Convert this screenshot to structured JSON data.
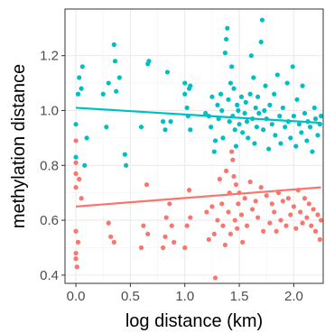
{
  "chart_data": {
    "type": "scatter",
    "title": "",
    "xlabel": "log distance (km)",
    "ylabel": "methylation distance",
    "xlim": [
      -0.1,
      2.27
    ],
    "ylim": [
      0.37,
      1.37
    ],
    "x_ticks": [
      0.0,
      0.5,
      1.0,
      1.5,
      2.0
    ],
    "x_tick_labels": [
      "0.0",
      "0.5",
      "1.0",
      "1.5",
      "2.0"
    ],
    "y_ticks": [
      0.4,
      0.6,
      0.8,
      1.0,
      1.2
    ],
    "y_tick_labels": [
      "0.4",
      "0.6",
      "0.8",
      "1.0",
      "1.2"
    ],
    "grid": true,
    "legend": "none",
    "series": [
      {
        "color": "#00BFC4",
        "trend": {
          "x": [
            0.0,
            2.25
          ],
          "y": [
            1.01,
            0.955
          ]
        },
        "points": [
          [
            0.0,
            0.83
          ],
          [
            0.0,
            0.95
          ],
          [
            0.02,
            1.06
          ],
          [
            0.03,
            1.12
          ],
          [
            0.05,
            1.08
          ],
          [
            0.06,
            1.16
          ],
          [
            0.08,
            0.8
          ],
          [
            0.1,
            0.9
          ],
          [
            0.25,
            1.06
          ],
          [
            0.28,
            0.94
          ],
          [
            0.3,
            1.1
          ],
          [
            0.35,
            1.24
          ],
          [
            0.36,
            1.18
          ],
          [
            0.37,
            1.07
          ],
          [
            0.4,
            1.12
          ],
          [
            0.45,
            0.84
          ],
          [
            0.46,
            0.8
          ],
          [
            0.6,
            0.94
          ],
          [
            0.66,
            1.17
          ],
          [
            0.67,
            1.18
          ],
          [
            0.8,
            0.96
          ],
          [
            0.82,
            0.93
          ],
          [
            0.84,
            1.14
          ],
          [
            0.87,
            0.96
          ],
          [
            1.0,
            1.1
          ],
          [
            1.0,
            1.06
          ],
          [
            1.02,
            1.01
          ],
          [
            1.03,
            0.98
          ],
          [
            1.04,
            1.08
          ],
          [
            1.05,
            0.93
          ],
          [
            1.05,
            1.09
          ],
          [
            1.19,
            0.99
          ],
          [
            1.22,
            0.98
          ],
          [
            1.24,
            0.94
          ],
          [
            1.25,
            1.05
          ],
          [
            1.27,
            0.85
          ],
          [
            1.28,
            0.89
          ],
          [
            1.3,
            1.02
          ],
          [
            1.31,
            0.97
          ],
          [
            1.33,
            1.06
          ],
          [
            1.34,
            1.0
          ],
          [
            1.35,
            0.9
          ],
          [
            1.37,
            1.21
          ],
          [
            1.38,
            1.26
          ],
          [
            1.39,
            1.3
          ],
          [
            1.4,
            1.04
          ],
          [
            1.41,
            0.96
          ],
          [
            1.42,
            1.1
          ],
          [
            1.43,
            1.16
          ],
          [
            1.44,
            0.98
          ],
          [
            1.45,
            1.08
          ],
          [
            1.46,
            0.93
          ],
          [
            1.47,
            0.87
          ],
          [
            1.48,
            1.02
          ],
          [
            1.49,
            1.0
          ],
          [
            1.5,
            0.95
          ],
          [
            1.52,
            1.05
          ],
          [
            1.53,
            0.92
          ],
          [
            1.55,
            0.99
          ],
          [
            1.56,
            1.03
          ],
          [
            1.57,
            0.96
          ],
          [
            1.58,
            0.9
          ],
          [
            1.6,
            1.06
          ],
          [
            1.61,
            1.2
          ],
          [
            1.62,
            0.97
          ],
          [
            1.63,
            1.12
          ],
          [
            1.64,
            0.88
          ],
          [
            1.65,
            1.01
          ],
          [
            1.66,
            0.94
          ],
          [
            1.67,
            1.05
          ],
          [
            1.68,
            0.99
          ],
          [
            1.7,
            1.25
          ],
          [
            1.71,
            1.33
          ],
          [
            1.72,
            0.93
          ],
          [
            1.73,
            1.0
          ],
          [
            1.74,
            1.09
          ],
          [
            1.75,
            0.97
          ],
          [
            1.77,
            0.86
          ],
          [
            1.78,
            1.02
          ],
          [
            1.8,
            0.95
          ],
          [
            1.82,
            1.06
          ],
          [
            1.83,
            0.91
          ],
          [
            1.85,
            1.13
          ],
          [
            1.87,
            0.98
          ],
          [
            1.88,
            0.88
          ],
          [
            1.9,
            1.01
          ],
          [
            1.92,
            0.94
          ],
          [
            1.94,
            1.1
          ],
          [
            1.95,
            0.96
          ],
          [
            1.97,
            0.9
          ],
          [
            1.99,
            1.16
          ],
          [
            2.0,
            0.98
          ],
          [
            2.02,
            0.87
          ],
          [
            2.03,
            1.04
          ],
          [
            2.05,
            0.95
          ],
          [
            2.07,
            0.92
          ],
          [
            2.08,
            1.09
          ],
          [
            2.1,
            0.99
          ],
          [
            2.12,
            0.89
          ],
          [
            2.13,
            0.96
          ],
          [
            2.15,
            0.94
          ],
          [
            2.17,
            0.85
          ],
          [
            2.19,
            1.01
          ],
          [
            2.2,
            0.97
          ],
          [
            2.22,
            0.91
          ],
          [
            2.24,
            0.95
          ],
          [
            2.25,
            0.98
          ]
        ]
      },
      {
        "color": "#F8766D",
        "trend": {
          "x": [
            0.0,
            2.25
          ],
          "y": [
            0.65,
            0.72
          ]
        },
        "points": [
          [
            0.0,
            0.56
          ],
          [
            0.0,
            0.72
          ],
          [
            0.0,
            0.77
          ],
          [
            0.0,
            0.81
          ],
          [
            0.0,
            0.89
          ],
          [
            0.0,
            0.48
          ],
          [
            0.0,
            0.46
          ],
          [
            0.01,
            0.43
          ],
          [
            0.02,
            0.52
          ],
          [
            0.03,
            0.75
          ],
          [
            0.05,
            0.68
          ],
          [
            0.3,
            0.59
          ],
          [
            0.32,
            0.54
          ],
          [
            0.35,
            0.52
          ],
          [
            0.6,
            0.5
          ],
          [
            0.62,
            0.58
          ],
          [
            0.65,
            0.73
          ],
          [
            0.66,
            0.55
          ],
          [
            0.8,
            0.5
          ],
          [
            0.82,
            0.54
          ],
          [
            0.83,
            0.61
          ],
          [
            0.86,
            0.66
          ],
          [
            0.88,
            0.58
          ],
          [
            0.9,
            0.52
          ],
          [
            1.0,
            0.5
          ],
          [
            1.02,
            0.58
          ],
          [
            1.04,
            0.71
          ],
          [
            1.05,
            0.61
          ],
          [
            1.2,
            0.63
          ],
          [
            1.22,
            0.53
          ],
          [
            1.25,
            0.65
          ],
          [
            1.27,
            0.55
          ],
          [
            1.28,
            0.39
          ],
          [
            1.3,
            0.6
          ],
          [
            1.32,
            0.75
          ],
          [
            1.34,
            0.66
          ],
          [
            1.35,
            0.58
          ],
          [
            1.37,
            0.51
          ],
          [
            1.38,
            0.78
          ],
          [
            1.4,
            0.63
          ],
          [
            1.41,
            0.7
          ],
          [
            1.42,
            0.55
          ],
          [
            1.43,
            0.85
          ],
          [
            1.44,
            0.82
          ],
          [
            1.45,
            0.76
          ],
          [
            1.46,
            0.6
          ],
          [
            1.47,
            0.73
          ],
          [
            1.48,
            0.57
          ],
          [
            1.49,
            0.66
          ],
          [
            1.5,
            0.7
          ],
          [
            1.52,
            0.62
          ],
          [
            1.53,
            0.52
          ],
          [
            1.55,
            0.68
          ],
          [
            1.57,
            0.58
          ],
          [
            1.6,
            0.74
          ],
          [
            1.62,
            0.64
          ],
          [
            1.65,
            0.67
          ],
          [
            1.67,
            0.61
          ],
          [
            1.7,
            0.72
          ],
          [
            1.72,
            0.56
          ],
          [
            1.75,
            0.69
          ],
          [
            1.78,
            0.59
          ],
          [
            1.8,
            0.66
          ],
          [
            1.82,
            0.63
          ],
          [
            1.84,
            0.56
          ],
          [
            1.86,
            0.7
          ],
          [
            1.88,
            0.6
          ],
          [
            1.9,
            0.67
          ],
          [
            1.93,
            0.58
          ],
          [
            1.95,
            0.68
          ],
          [
            1.97,
            0.62
          ],
          [
            2.0,
            0.65
          ],
          [
            2.02,
            0.57
          ],
          [
            2.04,
            0.71
          ],
          [
            2.06,
            0.63
          ],
          [
            2.08,
            0.59
          ],
          [
            2.1,
            0.68
          ],
          [
            2.12,
            0.61
          ],
          [
            2.14,
            0.66
          ],
          [
            2.16,
            0.58
          ],
          [
            2.18,
            0.64
          ],
          [
            2.2,
            0.56
          ],
          [
            2.22,
            0.62
          ],
          [
            2.24,
            0.53
          ],
          [
            2.25,
            0.6
          ]
        ]
      }
    ]
  }
}
